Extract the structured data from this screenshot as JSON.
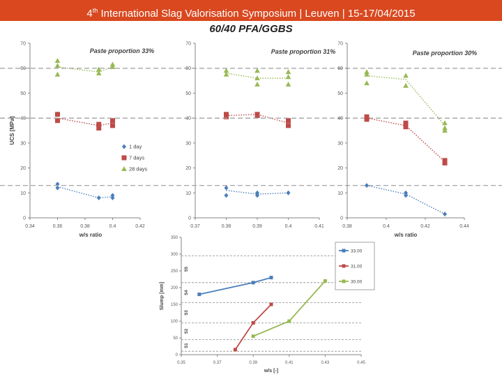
{
  "header": {
    "ordinal_number": "4",
    "ordinal_suffix": "th",
    "title_rest": " International Slag Valorisation Symposium  |  Leuven  |  15-17/04/2015"
  },
  "subtitle": "60/40 PFA/GGBS",
  "colors": {
    "blue": "#4a7ebb",
    "red": "#be4b48",
    "green": "#98b954",
    "header": "#d9481f"
  },
  "chart_data": [
    {
      "type": "scatter",
      "title": "Paste proportion 33%",
      "xlabel": "w/s ratio",
      "ylabel": "UCS [MPa]",
      "xlim": [
        0.34,
        0.42
      ],
      "ylim": [
        0,
        70
      ],
      "xticks": [
        "0.34",
        "0.36",
        "0.38",
        "0.4",
        "0.42"
      ],
      "yticks": [
        "0",
        "10",
        "20",
        "30",
        "40",
        "50",
        "60",
        "70"
      ],
      "reference_lines": [
        13,
        40,
        60
      ],
      "legend": [
        "1 day",
        "7 days",
        "28 days"
      ],
      "series": [
        {
          "name": "1 day",
          "color": "#4a7ebb",
          "marker": "diamond",
          "mean": [
            [
              0.36,
              12.5
            ],
            [
              0.39,
              8
            ],
            [
              0.4,
              8.5
            ]
          ],
          "points": [
            [
              0.36,
              13.5
            ],
            [
              0.36,
              12
            ],
            [
              0.39,
              8
            ],
            [
              0.4,
              9
            ],
            [
              0.4,
              8
            ]
          ]
        },
        {
          "name": "7 days",
          "color": "#be4b48",
          "marker": "square",
          "mean": [
            [
              0.36,
              40
            ],
            [
              0.39,
              37
            ],
            [
              0.4,
              38
            ]
          ],
          "points": [
            [
              0.36,
              41.5
            ],
            [
              0.36,
              39
            ],
            [
              0.39,
              37.5
            ],
            [
              0.39,
              36
            ],
            [
              0.4,
              39
            ],
            [
              0.4,
              37
            ]
          ]
        },
        {
          "name": "28 days",
          "color": "#98b954",
          "marker": "triangle",
          "mean": [
            [
              0.36,
              60.5
            ],
            [
              0.39,
              58.5
            ],
            [
              0.4,
              60.5
            ]
          ],
          "points": [
            [
              0.36,
              63
            ],
            [
              0.36,
              61
            ],
            [
              0.36,
              57.5
            ],
            [
              0.39,
              59.5
            ],
            [
              0.39,
              58
            ],
            [
              0.4,
              61.5
            ],
            [
              0.4,
              60.5
            ]
          ]
        }
      ]
    },
    {
      "type": "scatter",
      "title": "Paste proportion 31%",
      "xlabel": "w/s ratio",
      "ylabel": "",
      "xlim": [
        0.37,
        0.41
      ],
      "ylim": [
        0,
        70
      ],
      "xticks": [
        "0.37",
        "0.38",
        "0.39",
        "0.4",
        "0.41"
      ],
      "yticks": [
        "0",
        "10",
        "20",
        "30",
        "40",
        "50",
        "60",
        "70"
      ],
      "reference_lines": [
        13,
        40,
        60
      ],
      "series": [
        {
          "name": "1 day",
          "color": "#4a7ebb",
          "marker": "diamond",
          "mean": [
            [
              0.38,
              11
            ],
            [
              0.39,
              9.5
            ],
            [
              0.4,
              10
            ]
          ],
          "points": [
            [
              0.38,
              12
            ],
            [
              0.38,
              9
            ],
            [
              0.39,
              10
            ],
            [
              0.39,
              9
            ],
            [
              0.4,
              10
            ]
          ]
        },
        {
          "name": "7 days",
          "color": "#be4b48",
          "marker": "square",
          "mean": [
            [
              0.38,
              41
            ],
            [
              0.39,
              41.5
            ],
            [
              0.4,
              38
            ]
          ],
          "points": [
            [
              0.38,
              41.5
            ],
            [
              0.38,
              40.5
            ],
            [
              0.39,
              41.5
            ],
            [
              0.39,
              41
            ],
            [
              0.4,
              39
            ],
            [
              0.4,
              37
            ]
          ]
        },
        {
          "name": "28 days",
          "color": "#98b954",
          "marker": "triangle",
          "mean": [
            [
              0.38,
              58
            ],
            [
              0.39,
              56
            ],
            [
              0.4,
              56
            ]
          ],
          "points": [
            [
              0.38,
              59
            ],
            [
              0.38,
              57.5
            ],
            [
              0.39,
              59
            ],
            [
              0.39,
              56
            ],
            [
              0.39,
              53.5
            ],
            [
              0.4,
              58.5
            ],
            [
              0.4,
              56.5
            ],
            [
              0.4,
              53.5
            ]
          ]
        }
      ]
    },
    {
      "type": "scatter",
      "title": "Paste proportion 30%",
      "xlabel": "w/s ratio",
      "ylabel": "",
      "xlim": [
        0.38,
        0.44
      ],
      "ylim": [
        0,
        70
      ],
      "xticks": [
        "0.38",
        "0.4",
        "0.42",
        "0.44"
      ],
      "yticks": [
        "0",
        "10",
        "20",
        "30",
        "40",
        "50",
        "60",
        "70"
      ],
      "reference_lines": [
        13,
        40,
        60
      ],
      "series": [
        {
          "name": "1 day",
          "color": "#4a7ebb",
          "marker": "diamond",
          "mean": [
            [
              0.39,
              13
            ],
            [
              0.41,
              9.5
            ],
            [
              0.43,
              1.5
            ]
          ],
          "points": [
            [
              0.39,
              13
            ],
            [
              0.41,
              10
            ],
            [
              0.41,
              9
            ],
            [
              0.43,
              1.5
            ]
          ]
        },
        {
          "name": "7 days",
          "color": "#be4b48",
          "marker": "square",
          "mean": [
            [
              0.39,
              40
            ],
            [
              0.41,
              37
            ],
            [
              0.43,
              22.5
            ]
          ],
          "points": [
            [
              0.39,
              40.5
            ],
            [
              0.39,
              39.5
            ],
            [
              0.41,
              38
            ],
            [
              0.41,
              36.5
            ],
            [
              0.43,
              23
            ],
            [
              0.43,
              22
            ]
          ]
        },
        {
          "name": "28 days",
          "color": "#98b954",
          "marker": "triangle",
          "mean": [
            [
              0.39,
              57
            ],
            [
              0.41,
              55.5
            ],
            [
              0.43,
              37
            ]
          ],
          "points": [
            [
              0.39,
              58.5
            ],
            [
              0.39,
              57.5
            ],
            [
              0.39,
              54
            ],
            [
              0.41,
              57
            ],
            [
              0.41,
              53
            ],
            [
              0.43,
              38
            ],
            [
              0.43,
              36
            ],
            [
              0.43,
              35
            ]
          ]
        }
      ]
    },
    {
      "type": "line",
      "title": "",
      "xlabel": "w/s [-]",
      "ylabel": "Slump [mm]",
      "xlim": [
        0.35,
        0.45
      ],
      "ylim": [
        0,
        350
      ],
      "xticks": [
        "0.35",
        "0.37",
        "0.39",
        "0.41",
        "0.43",
        "0.45"
      ],
      "yticks": [
        "0",
        "50",
        "100",
        "150",
        "200",
        "250",
        "300",
        "350"
      ],
      "class_lines": [
        10,
        45,
        95,
        155,
        215,
        295
      ],
      "class_labels": [
        {
          "label": "S1",
          "y": 27
        },
        {
          "label": "S2",
          "y": 70
        },
        {
          "label": "S3",
          "y": 125
        },
        {
          "label": "S4",
          "y": 185
        },
        {
          "label": "S5",
          "y": 255
        }
      ],
      "series": [
        {
          "name": "33.00",
          "color": "#4a7ebb",
          "x": [
            0.36,
            0.39,
            0.4
          ],
          "values": [
            180,
            215,
            230
          ]
        },
        {
          "name": "31.00",
          "color": "#be4b48",
          "x": [
            0.38,
            0.39,
            0.4
          ],
          "values": [
            15,
            95,
            150
          ]
        },
        {
          "name": "30.00",
          "color": "#98b954",
          "x": [
            0.39,
            0.41,
            0.43
          ],
          "values": [
            55,
            100,
            220
          ]
        }
      ]
    }
  ]
}
